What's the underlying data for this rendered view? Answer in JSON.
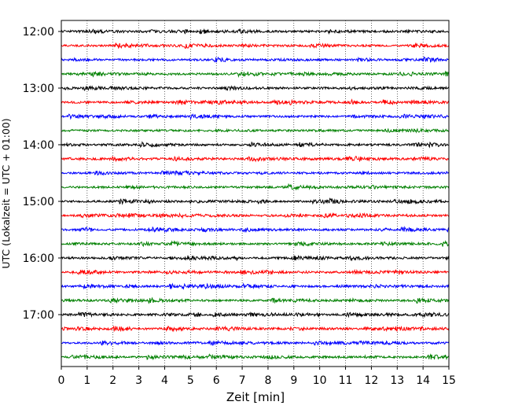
{
  "chart_data": {
    "type": "line",
    "title": "",
    "xlabel": "Zeit  [min]",
    "ylabel": "UTC (Lokalzeit = UTC + 01:00)",
    "xlim": [
      0,
      15
    ],
    "x_ticks": [
      0,
      1,
      2,
      3,
      4,
      5,
      6,
      7,
      8,
      9,
      10,
      11,
      12,
      13,
      14,
      15
    ],
    "x_grid": true,
    "y_ticks": [
      "12:00",
      "13:00",
      "14:00",
      "15:00",
      "16:00",
      "17:00"
    ],
    "trace_start": "12:00",
    "trace_end": "17:45",
    "trace_interval_min": 15,
    "trace_colors": [
      "#000000",
      "#ff0000",
      "#0000ff",
      "#008000"
    ],
    "legend": "none"
  }
}
